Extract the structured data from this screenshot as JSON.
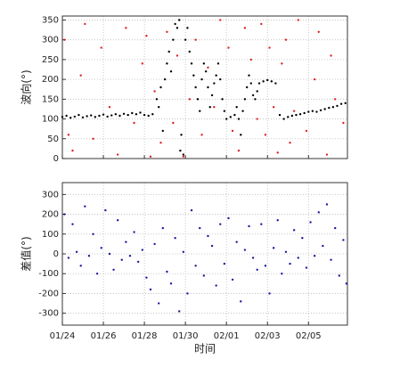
{
  "chart_data": [
    {
      "type": "scatter",
      "ylabel": "波向(°)",
      "grid": true,
      "xtick_labels": false,
      "xlim": [
        0,
        13.9
      ],
      "xticks": [
        0,
        2,
        4,
        6,
        8,
        10,
        12
      ],
      "ylim": [
        0,
        360
      ],
      "yticks": [
        0,
        50,
        100,
        150,
        200,
        250,
        300,
        350
      ],
      "series": [
        {
          "color": "#000000",
          "x": [
            0.0,
            0.2,
            0.4,
            0.6,
            0.8,
            1.0,
            1.2,
            1.4,
            1.6,
            1.8,
            2.0,
            2.2,
            2.4,
            2.6,
            2.8,
            3.0,
            3.2,
            3.4,
            3.6,
            3.8,
            4.0,
            4.2,
            4.4,
            4.6,
            4.7,
            4.8,
            4.9,
            5.0,
            5.1,
            5.2,
            5.3,
            5.4,
            5.5,
            5.6,
            5.7,
            5.75,
            5.8,
            5.9,
            6.0,
            6.1,
            6.2,
            6.3,
            6.4,
            6.5,
            6.6,
            6.7,
            6.8,
            6.9,
            7.0,
            7.1,
            7.2,
            7.3,
            7.4,
            7.5,
            7.6,
            7.7,
            7.8,
            7.9,
            8.0,
            8.2,
            8.4,
            8.5,
            8.6,
            8.7,
            8.8,
            8.9,
            9.0,
            9.1,
            9.2,
            9.3,
            9.4,
            9.5,
            9.6,
            9.8,
            10.0,
            10.2,
            10.4,
            10.6,
            10.8,
            11.0,
            11.2,
            11.4,
            11.6,
            11.8,
            12.0,
            12.2,
            12.4,
            12.6,
            12.8,
            13.0,
            13.2,
            13.4,
            13.6,
            13.8
          ],
          "values": [
            105,
            108,
            103,
            106,
            110,
            104,
            107,
            109,
            105,
            108,
            111,
            106,
            109,
            112,
            108,
            113,
            110,
            115,
            112,
            116,
            110,
            108,
            112,
            150,
            130,
            180,
            70,
            200,
            240,
            270,
            220,
            300,
            340,
            330,
            350,
            20,
            60,
            10,
            300,
            330,
            270,
            240,
            210,
            180,
            150,
            120,
            200,
            240,
            220,
            180,
            130,
            160,
            190,
            210,
            240,
            200,
            150,
            120,
            100,
            105,
            110,
            130,
            100,
            60,
            120,
            150,
            180,
            210,
            190,
            160,
            150,
            170,
            190,
            195,
            198,
            195,
            190,
            110,
            100,
            105,
            108,
            110,
            112,
            115,
            118,
            120,
            118,
            122,
            125,
            128,
            130,
            133,
            138,
            140
          ]
        },
        {
          "color": "#e02020",
          "x": [
            0.1,
            0.3,
            0.5,
            0.9,
            1.1,
            1.5,
            1.9,
            2.3,
            2.7,
            3.1,
            3.5,
            3.9,
            4.1,
            4.3,
            4.5,
            4.8,
            5.1,
            5.4,
            5.6,
            5.9,
            6.2,
            6.5,
            6.8,
            7.1,
            7.4,
            7.7,
            8.1,
            8.3,
            8.6,
            8.9,
            9.2,
            9.5,
            9.7,
            9.9,
            10.1,
            10.3,
            10.5,
            10.7,
            10.9,
            11.1,
            11.3,
            11.5,
            11.9,
            12.3,
            12.5,
            12.9,
            13.1,
            13.3,
            13.7
          ],
          "values": [
            300,
            60,
            20,
            210,
            340,
            50,
            280,
            130,
            10,
            330,
            90,
            240,
            310,
            5,
            170,
            40,
            320,
            90,
            260,
            5,
            150,
            300,
            60,
            230,
            130,
            350,
            280,
            70,
            20,
            330,
            250,
            100,
            340,
            60,
            280,
            130,
            15,
            240,
            300,
            40,
            120,
            350,
            70,
            200,
            320,
            10,
            260,
            150,
            90
          ]
        }
      ]
    },
    {
      "type": "scatter",
      "xlabel": "时间",
      "ylabel": "差值(°)",
      "grid": true,
      "xtick_labels": true,
      "xlim": [
        0,
        13.9
      ],
      "xticks": [
        {
          "value": 0,
          "label": "01/24"
        },
        {
          "value": 2,
          "label": "01/26"
        },
        {
          "value": 4,
          "label": "01/28"
        },
        {
          "value": 6,
          "label": "01/30"
        },
        {
          "value": 8,
          "label": "02/01"
        },
        {
          "value": 10,
          "label": "02/03"
        },
        {
          "value": 12,
          "label": "02/05"
        }
      ],
      "ylim": [
        -360,
        360
      ],
      "yticks": [
        -300,
        -200,
        -100,
        0,
        100,
        200,
        300
      ],
      "series": [
        {
          "color": "#1a1aa0",
          "x": [
            0.1,
            0.3,
            0.5,
            0.7,
            0.9,
            1.1,
            1.3,
            1.5,
            1.7,
            1.9,
            2.1,
            2.3,
            2.5,
            2.7,
            2.9,
            3.1,
            3.3,
            3.5,
            3.7,
            3.9,
            4.1,
            4.3,
            4.5,
            4.7,
            4.9,
            5.1,
            5.3,
            5.5,
            5.7,
            5.9,
            6.1,
            6.3,
            6.5,
            6.7,
            6.9,
            7.1,
            7.3,
            7.5,
            7.7,
            7.9,
            8.1,
            8.3,
            8.5,
            8.7,
            8.9,
            9.1,
            9.3,
            9.5,
            9.7,
            9.9,
            10.1,
            10.3,
            10.5,
            10.7,
            10.9,
            11.1,
            11.3,
            11.5,
            11.7,
            11.9,
            12.1,
            12.3,
            12.5,
            12.7,
            12.9,
            13.1,
            13.3,
            13.5,
            13.7,
            13.85
          ],
          "values": [
            200,
            -20,
            150,
            10,
            -60,
            240,
            -10,
            100,
            -100,
            30,
            220,
            0,
            -80,
            170,
            -30,
            60,
            -10,
            110,
            -40,
            20,
            -120,
            -180,
            50,
            -250,
            130,
            -90,
            -150,
            80,
            -290,
            10,
            -200,
            220,
            -60,
            130,
            -110,
            90,
            40,
            -160,
            150,
            -50,
            180,
            -130,
            60,
            -240,
            20,
            140,
            -20,
            -80,
            150,
            -60,
            -200,
            30,
            170,
            -100,
            10,
            -50,
            120,
            -20,
            80,
            -70,
            160,
            -10,
            210,
            40,
            250,
            -30,
            130,
            -110,
            70,
            -150
          ]
        }
      ]
    }
  ]
}
